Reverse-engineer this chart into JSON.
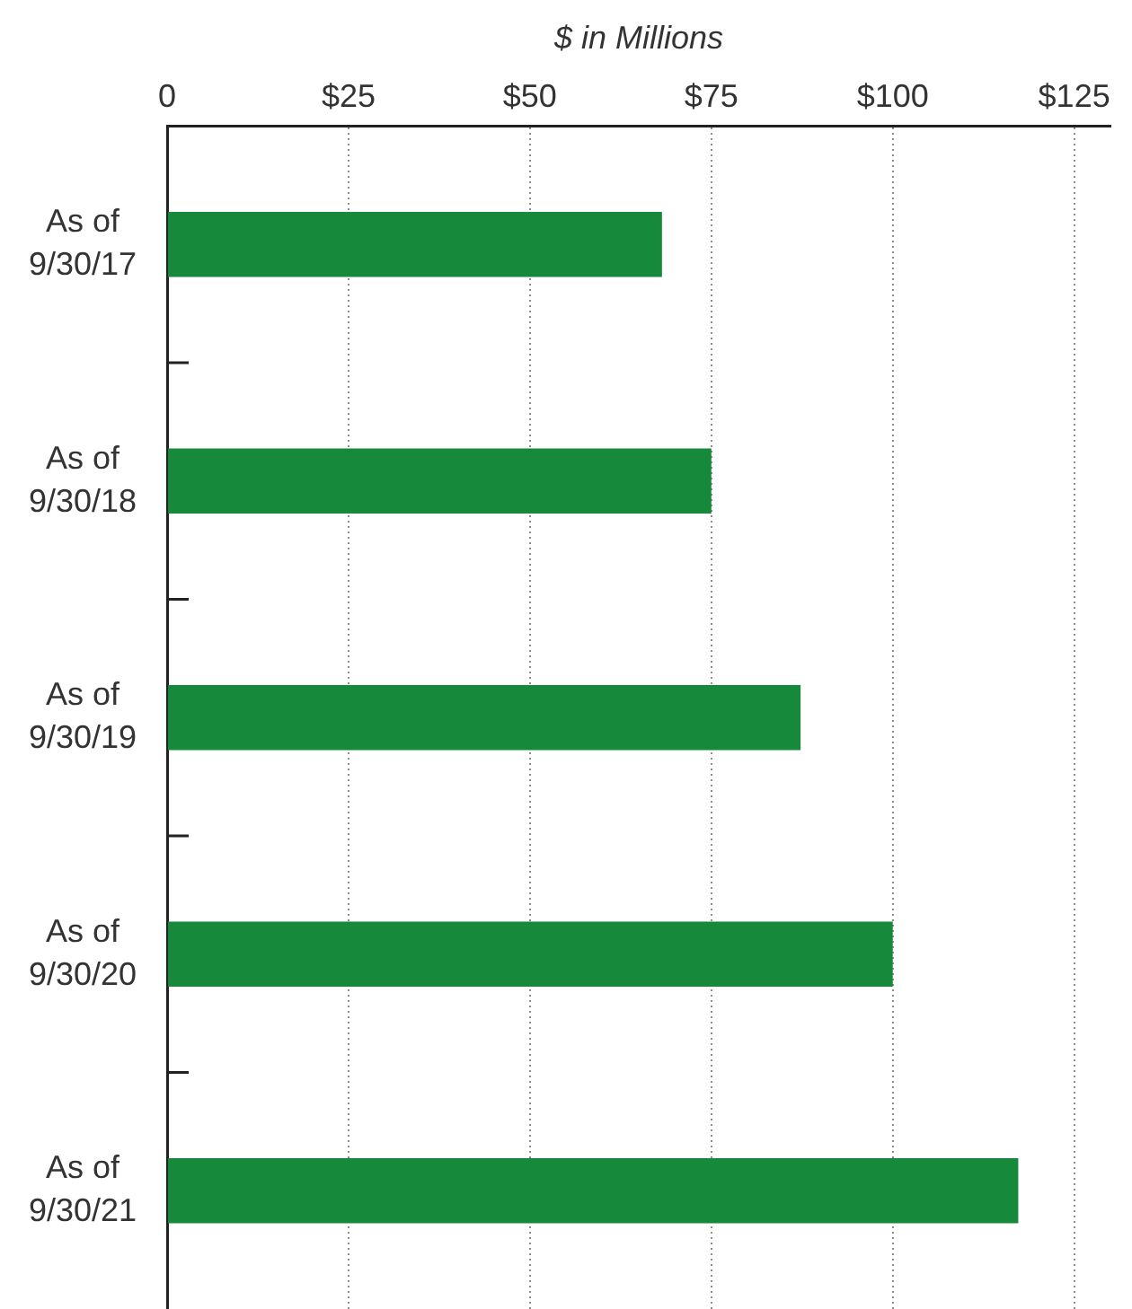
{
  "chart_data": {
    "type": "bar",
    "orientation": "horizontal",
    "xlabel": "$ in Millions",
    "categories": [
      "As of 9/30/17",
      "As of 9/30/18",
      "As of 9/30/19",
      "As of 9/30/20",
      "As of 9/30/21"
    ],
    "values": [
      68.2,
      75.0,
      87.3,
      100.0,
      117.3
    ],
    "color": "#17893b",
    "xlim": [
      0,
      130
    ],
    "xticks": [
      0,
      {
        "value": 25,
        "label": "$25"
      },
      {
        "value": 50,
        "label": "$50"
      },
      {
        "value": 75,
        "label": "$75"
      },
      {
        "value": 100,
        "label": "$100"
      },
      {
        "value": 125,
        "label": "$125"
      }
    ],
    "grid": "x"
  }
}
